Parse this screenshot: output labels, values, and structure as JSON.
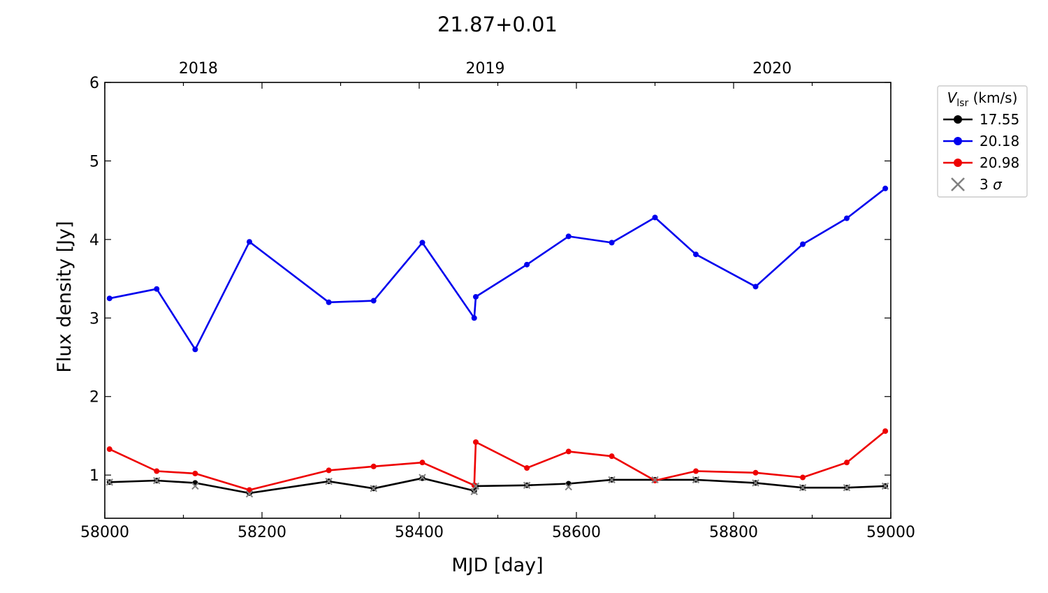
{
  "chart_data": {
    "type": "line",
    "title": "21.87+0.01",
    "xlabel": "MJD [day]",
    "ylabel": "Flux density [Jy]",
    "xlim": [
      58000,
      59000
    ],
    "ylim": [
      0.45,
      6
    ],
    "x_ticks": [
      58000,
      58200,
      58400,
      58600,
      58800,
      59000
    ],
    "y_ticks": [
      1,
      2,
      3,
      4,
      5,
      6
    ],
    "top_axis": {
      "ticks": [
        {
          "label": "2018",
          "mjd": 58119
        },
        {
          "label": "2019",
          "mjd": 58484
        },
        {
          "label": "2020",
          "mjd": 58849
        }
      ]
    },
    "grid": false,
    "legend": {
      "placement": "outside-right",
      "title": "V",
      "title_sub": "lsr",
      "title_unit": " (km/s)",
      "entries": [
        {
          "label": "17.55",
          "color": "#000000",
          "marker": "dot-line"
        },
        {
          "label": "20.18",
          "color": "#0000ee",
          "marker": "dot-line"
        },
        {
          "label": "20.98",
          "color": "#ee0000",
          "marker": "dot-line"
        },
        {
          "label": "3 σ",
          "color": "#808080",
          "marker": "x"
        }
      ]
    },
    "series": [
      {
        "name": "17.55",
        "color": "#000000",
        "x": [
          58006,
          58066,
          58115,
          58184,
          58285,
          58342,
          58404,
          58470,
          58472,
          58537,
          58590,
          58645,
          58700,
          58752,
          58828,
          58888,
          58944,
          58993
        ],
        "values": [
          0.91,
          0.93,
          0.9,
          0.77,
          0.92,
          0.83,
          0.96,
          0.8,
          0.86,
          0.87,
          0.89,
          0.94,
          0.94,
          0.94,
          0.9,
          0.84,
          0.84,
          0.86
        ]
      },
      {
        "name": "20.18",
        "color": "#0000ee",
        "x": [
          58006,
          58066,
          58115,
          58184,
          58285,
          58342,
          58404,
          58470,
          58472,
          58537,
          58590,
          58645,
          58700,
          58752,
          58828,
          58888,
          58944,
          58993
        ],
        "values": [
          3.25,
          3.37,
          2.6,
          3.97,
          3.2,
          3.22,
          3.96,
          3.0,
          3.27,
          3.68,
          4.04,
          3.96,
          4.28,
          3.81,
          3.4,
          3.94,
          4.27,
          4.65
        ]
      },
      {
        "name": "20.98",
        "color": "#ee0000",
        "x": [
          58006,
          58066,
          58115,
          58184,
          58285,
          58342,
          58404,
          58470,
          58472,
          58537,
          58590,
          58645,
          58700,
          58752,
          58828,
          58888,
          58944,
          58993
        ],
        "values": [
          1.33,
          1.05,
          1.02,
          0.81,
          1.06,
          1.11,
          1.16,
          0.87,
          1.42,
          1.09,
          1.3,
          1.24,
          0.93,
          1.05,
          1.03,
          0.97,
          1.16,
          1.56
        ]
      }
    ],
    "sigma3_points": {
      "label": "3 σ",
      "color": "#808080",
      "x": [
        58006,
        58066,
        58115,
        58184,
        58285,
        58342,
        58404,
        58470,
        58472,
        58537,
        58590,
        58645,
        58700,
        58752,
        58828,
        58888,
        58944,
        58993
      ],
      "values": [
        0.91,
        0.93,
        0.86,
        0.76,
        0.92,
        0.83,
        0.97,
        0.79,
        0.86,
        0.87,
        0.85,
        0.94,
        0.94,
        0.94,
        0.9,
        0.84,
        0.84,
        0.86
      ]
    }
  }
}
